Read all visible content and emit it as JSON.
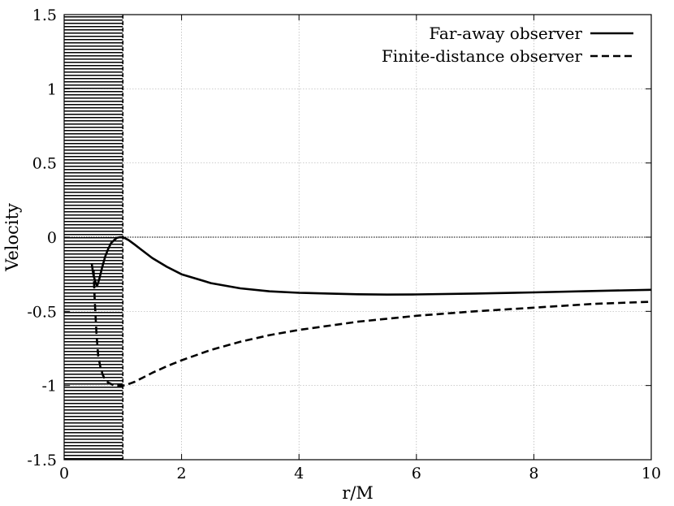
{
  "chart_data": {
    "type": "line",
    "title": "",
    "xlabel": "r/M",
    "ylabel": "Velocity",
    "xlim": [
      0,
      10
    ],
    "ylim": [
      -1.5,
      1.5
    ],
    "grid": true,
    "legend": "top-right",
    "xticks": [
      0,
      2,
      4,
      6,
      8,
      10
    ],
    "xtick_labels": [
      "0",
      "2",
      "4",
      "6",
      "8",
      "10"
    ],
    "yticks": [
      -1.5,
      -1,
      -0.5,
      0,
      0.5,
      1,
      1.5
    ],
    "ytick_labels": [
      "-1.5",
      "-1",
      "-0.5",
      "0",
      "0.5",
      "1",
      "1.5"
    ],
    "shaded_region": {
      "x_from": 0,
      "x_to": 1,
      "pattern": "horizontal-hatch"
    },
    "reference_lines": [
      {
        "axis": "y",
        "value": 0,
        "style": "dotted"
      },
      {
        "axis": "x",
        "value": 1,
        "style": "dashed"
      }
    ],
    "series": [
      {
        "name": "Far-away observer",
        "style": "solid",
        "x": [
          0.47,
          0.5,
          0.54,
          0.56,
          0.6,
          0.65,
          0.7,
          0.75,
          0.8,
          0.85,
          0.9,
          0.95,
          1.0,
          1.05,
          1.1,
          1.2,
          1.3,
          1.4,
          1.5,
          1.75,
          2.0,
          2.5,
          3.0,
          3.5,
          4.0,
          4.5,
          5.0,
          5.5,
          6.0,
          7.0,
          8.0,
          9.0,
          10.0
        ],
        "y": [
          -0.18,
          -0.26,
          -0.31,
          -0.33,
          -0.28,
          -0.2,
          -0.13,
          -0.08,
          -0.04,
          -0.02,
          -0.005,
          0.0,
          0.0,
          -0.01,
          -0.02,
          -0.05,
          -0.08,
          -0.11,
          -0.14,
          -0.2,
          -0.25,
          -0.31,
          -0.345,
          -0.365,
          -0.375,
          -0.38,
          -0.385,
          -0.387,
          -0.386,
          -0.38,
          -0.372,
          -0.363,
          -0.355
        ]
      },
      {
        "name": "Finite-distance observer",
        "style": "dashed",
        "x": [
          0.5,
          0.52,
          0.55,
          0.58,
          0.62,
          0.66,
          0.7,
          0.75,
          0.8,
          0.85,
          0.9,
          0.95,
          1.0,
          1.05,
          1.1,
          1.2,
          1.35,
          1.5,
          1.75,
          2.0,
          2.5,
          3.0,
          3.5,
          4.0,
          5.0,
          6.0,
          7.0,
          8.0,
          9.0,
          10.0
        ],
        "y": [
          -0.22,
          -0.42,
          -0.65,
          -0.8,
          -0.88,
          -0.93,
          -0.96,
          -0.98,
          -0.99,
          -1.0,
          -1.0,
          -1.0,
          -1.0,
          -0.998,
          -0.99,
          -0.975,
          -0.945,
          -0.915,
          -0.87,
          -0.83,
          -0.76,
          -0.705,
          -0.66,
          -0.625,
          -0.57,
          -0.53,
          -0.5,
          -0.475,
          -0.45,
          -0.435
        ]
      }
    ]
  }
}
